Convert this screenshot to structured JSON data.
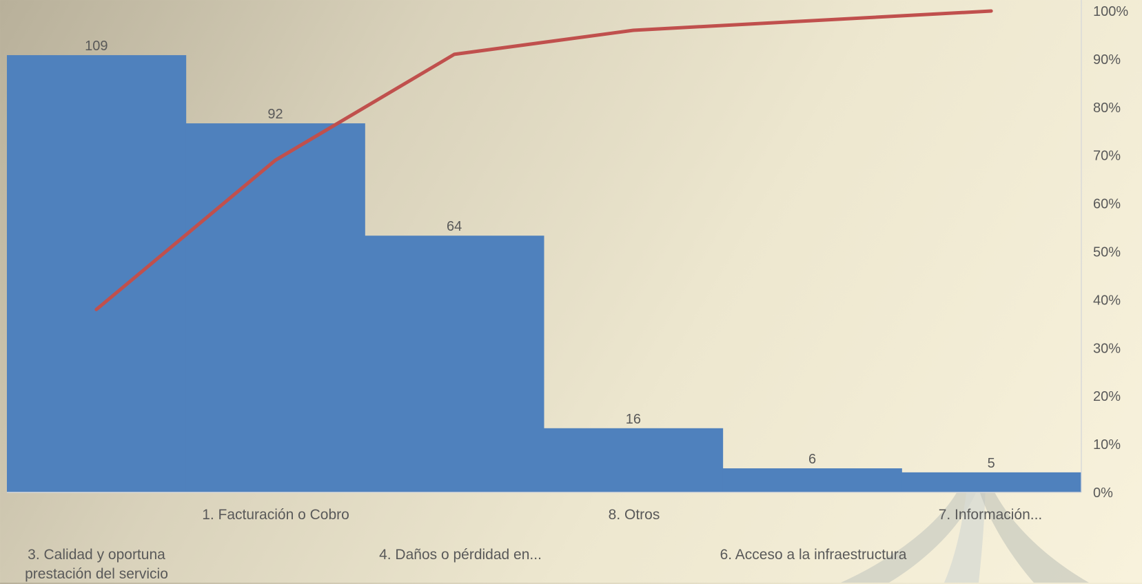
{
  "chart_data": {
    "type": "bar",
    "categories": [
      "3. Calidad y oportuna prestación del servicio",
      "1. Facturación o Cobro",
      "4. Daños o pérdidad en...",
      "8. Otros",
      "6. Acceso a la infraestructura",
      "7. Información..."
    ],
    "series": [
      {
        "type": "bar",
        "values": [
          109,
          92,
          64,
          16,
          6,
          5
        ],
        "color": "#4f81bd"
      },
      {
        "type": "line",
        "axis": "secondary",
        "values": [
          0.38,
          0.69,
          0.91,
          0.96,
          0.98,
          1.0
        ],
        "color": "#c0504d"
      }
    ],
    "data_labels": [
      "109",
      "92",
      "64",
      "16",
      "6",
      "5"
    ],
    "y_secondary_ticks": [
      "0%",
      "10%",
      "20%",
      "30%",
      "40%",
      "50%",
      "60%",
      "70%",
      "80%",
      "90%",
      "100%"
    ],
    "ylim_primary": [
      0,
      120
    ],
    "ylim_secondary": [
      0,
      1
    ],
    "grid": false,
    "legend": "none",
    "title": "",
    "xlabel": "",
    "ylabel": ""
  }
}
